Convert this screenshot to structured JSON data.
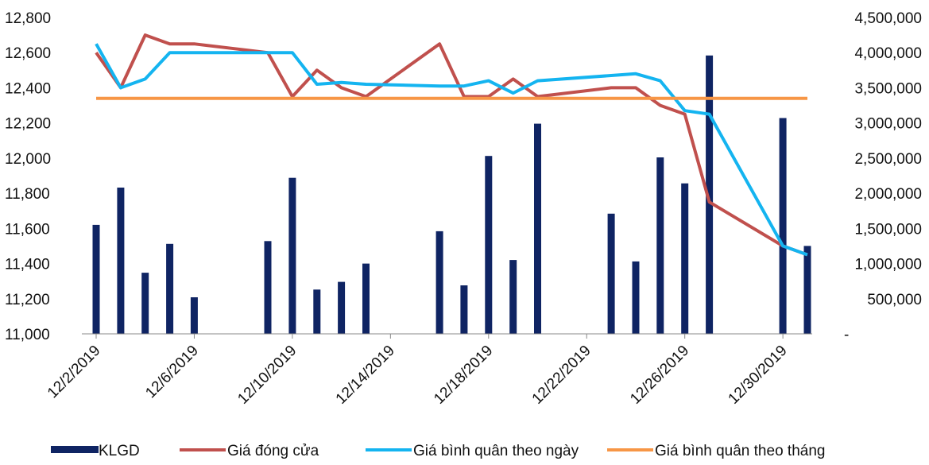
{
  "chart_data": {
    "type": "bar+line",
    "title": "",
    "xlabel": "",
    "ylabel": "",
    "y_left": {
      "min": 11000,
      "max": 12800,
      "ticks": [
        11000,
        11200,
        11400,
        11600,
        11800,
        12000,
        12200,
        12400,
        12600,
        12800
      ],
      "tick_labels": [
        "11,000",
        "11,200",
        "11,400",
        "11,600",
        "11,800",
        "12,000",
        "12,200",
        "12,400",
        "12,600",
        "12,800"
      ]
    },
    "y_right": {
      "min": 0,
      "max": 4500000,
      "ticks": [
        0,
        500000,
        1000000,
        1500000,
        2000000,
        2500000,
        3000000,
        3500000,
        4000000,
        4500000
      ],
      "tick_labels": [
        "-",
        "500,000",
        "1,000,000",
        "1,500,000",
        "2,000,000",
        "2,500,000",
        "3,000,000",
        "3,500,000",
        "4,000,000",
        "4,500,000"
      ]
    },
    "x_axis": {
      "start": "2019-12-02",
      "end": "2019-12-31",
      "tick_labels": [
        "12/2/2019",
        "12/6/2019",
        "12/10/2019",
        "12/14/2019",
        "12/18/2019",
        "12/22/2019",
        "12/26/2019",
        "12/30/2019"
      ],
      "tick_dates": [
        "2019-12-02",
        "2019-12-06",
        "2019-12-10",
        "2019-12-14",
        "2019-12-18",
        "2019-12-22",
        "2019-12-26",
        "2019-12-30"
      ]
    },
    "grid": false,
    "legend_position": "bottom",
    "series": [
      {
        "name": "KLGD",
        "type": "bar",
        "axis": "right",
        "color": "#0f2463",
        "points": [
          {
            "x": "2019-12-02",
            "y": 1550000
          },
          {
            "x": "2019-12-03",
            "y": 2080000
          },
          {
            "x": "2019-12-04",
            "y": 870000
          },
          {
            "x": "2019-12-05",
            "y": 1280000
          },
          {
            "x": "2019-12-06",
            "y": 520000
          },
          {
            "x": "2019-12-09",
            "y": 1320000
          },
          {
            "x": "2019-12-10",
            "y": 2220000
          },
          {
            "x": "2019-12-11",
            "y": 630000
          },
          {
            "x": "2019-12-12",
            "y": 740000
          },
          {
            "x": "2019-12-13",
            "y": 1000000
          },
          {
            "x": "2019-12-16",
            "y": 1460000
          },
          {
            "x": "2019-12-17",
            "y": 690000
          },
          {
            "x": "2019-12-18",
            "y": 2530000
          },
          {
            "x": "2019-12-19",
            "y": 1050000
          },
          {
            "x": "2019-12-20",
            "y": 2990000
          },
          {
            "x": "2019-12-23",
            "y": 1710000
          },
          {
            "x": "2019-12-24",
            "y": 1030000
          },
          {
            "x": "2019-12-25",
            "y": 2510000
          },
          {
            "x": "2019-12-26",
            "y": 2140000
          },
          {
            "x": "2019-12-27",
            "y": 3960000
          },
          {
            "x": "2019-12-30",
            "y": 3070000
          },
          {
            "x": "2019-12-31",
            "y": 1250000
          }
        ]
      },
      {
        "name": "Giá đóng cửa",
        "type": "line",
        "axis": "left",
        "color": "#c0504d",
        "points": [
          {
            "x": "2019-12-02",
            "y": 12600
          },
          {
            "x": "2019-12-03",
            "y": 12400
          },
          {
            "x": "2019-12-04",
            "y": 12700
          },
          {
            "x": "2019-12-05",
            "y": 12650
          },
          {
            "x": "2019-12-06",
            "y": 12650
          },
          {
            "x": "2019-12-09",
            "y": 12600
          },
          {
            "x": "2019-12-10",
            "y": 12350
          },
          {
            "x": "2019-12-11",
            "y": 12500
          },
          {
            "x": "2019-12-12",
            "y": 12400
          },
          {
            "x": "2019-12-13",
            "y": 12350
          },
          {
            "x": "2019-12-16",
            "y": 12650
          },
          {
            "x": "2019-12-17",
            "y": 12350
          },
          {
            "x": "2019-12-18",
            "y": 12350
          },
          {
            "x": "2019-12-19",
            "y": 12450
          },
          {
            "x": "2019-12-20",
            "y": 12350
          },
          {
            "x": "2019-12-23",
            "y": 12400
          },
          {
            "x": "2019-12-24",
            "y": 12400
          },
          {
            "x": "2019-12-25",
            "y": 12300
          },
          {
            "x": "2019-12-26",
            "y": 12250
          },
          {
            "x": "2019-12-27",
            "y": 11750
          },
          {
            "x": "2019-12-30",
            "y": 11500
          },
          {
            "x": "2019-12-31",
            "y": 11450
          }
        ]
      },
      {
        "name": "Giá bình quân theo ngày",
        "type": "line",
        "axis": "left",
        "color": "#14b4f0",
        "points": [
          {
            "x": "2019-12-02",
            "y": 12650
          },
          {
            "x": "2019-12-03",
            "y": 12400
          },
          {
            "x": "2019-12-04",
            "y": 12450
          },
          {
            "x": "2019-12-05",
            "y": 12600
          },
          {
            "x": "2019-12-06",
            "y": 12600
          },
          {
            "x": "2019-12-09",
            "y": 12600
          },
          {
            "x": "2019-12-10",
            "y": 12600
          },
          {
            "x": "2019-12-11",
            "y": 12420
          },
          {
            "x": "2019-12-12",
            "y": 12430
          },
          {
            "x": "2019-12-13",
            "y": 12420
          },
          {
            "x": "2019-12-16",
            "y": 12410
          },
          {
            "x": "2019-12-17",
            "y": 12410
          },
          {
            "x": "2019-12-18",
            "y": 12440
          },
          {
            "x": "2019-12-19",
            "y": 12370
          },
          {
            "x": "2019-12-20",
            "y": 12440
          },
          {
            "x": "2019-12-23",
            "y": 12470
          },
          {
            "x": "2019-12-24",
            "y": 12480
          },
          {
            "x": "2019-12-25",
            "y": 12440
          },
          {
            "x": "2019-12-26",
            "y": 12270
          },
          {
            "x": "2019-12-27",
            "y": 12250
          },
          {
            "x": "2019-12-30",
            "y": 11500
          },
          {
            "x": "2019-12-31",
            "y": 11450
          }
        ]
      },
      {
        "name": "Giá bình quân theo tháng",
        "type": "line",
        "axis": "left",
        "color": "#f79646",
        "points": [
          {
            "x": "2019-12-02",
            "y": 12340
          },
          {
            "x": "2019-12-31",
            "y": 12340
          }
        ]
      }
    ]
  }
}
